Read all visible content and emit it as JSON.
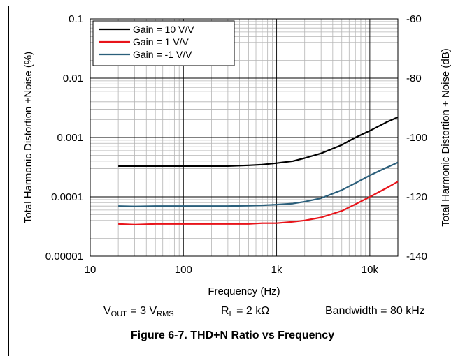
{
  "chart_data": {
    "type": "line",
    "x_axis": {
      "label": "Frequency (Hz)",
      "scale": "log",
      "range": [
        10,
        20000
      ],
      "tick_labels": [
        "10",
        "100",
        "1k",
        "10k"
      ],
      "tick_values": [
        10,
        100,
        1000,
        10000
      ]
    },
    "y_axis_left": {
      "label": "Total Harmonic Distortion +Noise (%)",
      "scale": "log",
      "range": [
        1e-05,
        0.1
      ],
      "tick_labels": [
        "0.1",
        "0.01",
        "0.001",
        "0.0001",
        "0.00001"
      ],
      "tick_values": [
        0.1,
        0.01,
        0.001,
        0.0001,
        1e-05
      ]
    },
    "y_axis_right": {
      "label": "Total Harmonic Distortion + Noise (dB)",
      "scale": "linear",
      "range": [
        -140,
        -60
      ],
      "tick_labels": [
        "-60",
        "-80",
        "-100",
        "-120",
        "-140"
      ],
      "tick_values": [
        -60,
        -80,
        -100,
        -120,
        -140
      ]
    },
    "grid": true,
    "legend_position": "top-left",
    "series": [
      {
        "name": "Gain = 10 V/V",
        "color": "#000000",
        "x": [
          20,
          30,
          50,
          100,
          200,
          300,
          500,
          700,
          1000,
          1500,
          2000,
          3000,
          5000,
          7000,
          10000,
          15000,
          20000
        ],
        "y": [
          0.00033,
          0.00033,
          0.00033,
          0.00033,
          0.00033,
          0.00033,
          0.00034,
          0.00035,
          0.00037,
          0.0004,
          0.00045,
          0.00054,
          0.00075,
          0.001,
          0.0013,
          0.0018,
          0.0022
        ]
      },
      {
        "name": "Gain = 1 V/V",
        "color": "#e8141a",
        "x": [
          20,
          30,
          50,
          100,
          200,
          300,
          500,
          700,
          1000,
          1500,
          2000,
          3000,
          5000,
          7000,
          10000,
          15000,
          20000
        ],
        "y": [
          3.5e-05,
          3.4e-05,
          3.5e-05,
          3.5e-05,
          3.5e-05,
          3.5e-05,
          3.5e-05,
          3.6e-05,
          3.6e-05,
          3.8e-05,
          4e-05,
          4.5e-05,
          5.8e-05,
          7.5e-05,
          0.0001,
          0.00014,
          0.00018
        ]
      },
      {
        "name": "Gain = -1 V/V",
        "color": "#2b5f7b",
        "x": [
          20,
          30,
          50,
          100,
          200,
          300,
          500,
          700,
          1000,
          1500,
          2000,
          3000,
          5000,
          7000,
          10000,
          15000,
          20000
        ],
        "y": [
          7e-05,
          6.9e-05,
          7e-05,
          7e-05,
          7e-05,
          7e-05,
          7.1e-05,
          7.2e-05,
          7.4e-05,
          7.7e-05,
          8.3e-05,
          9.5e-05,
          0.00013,
          0.00017,
          0.00023,
          0.00031,
          0.00038
        ]
      }
    ]
  },
  "conditions": {
    "vout": {
      "prefix": "V",
      "sub1": "OUT",
      "mid": " = 3 V",
      "sub2": "RMS"
    },
    "rl": {
      "prefix": "R",
      "sub": "L",
      "rest": " = 2 kΩ"
    },
    "bandwidth": "Bandwidth = 80 kHz"
  },
  "caption": "Figure 6-7. THD+N Ratio vs Frequency"
}
